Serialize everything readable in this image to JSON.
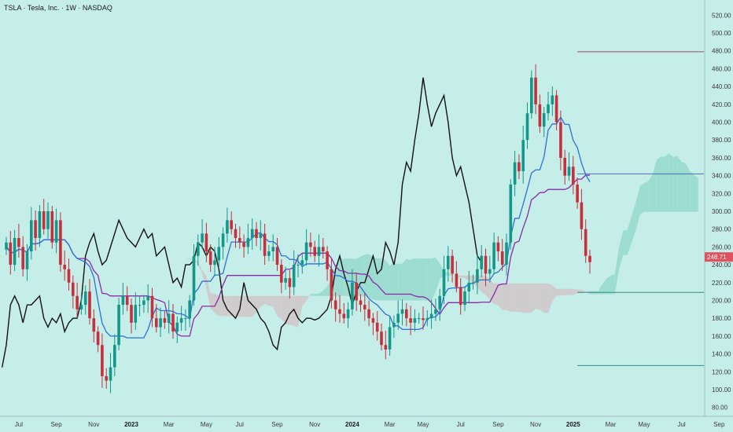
{
  "chart_data": {
    "type": "candlestick",
    "title": "TSLA · Tesla, Inc. · 1W · NASDAQ",
    "symbol": "TSLA",
    "current_price_label": "248.71",
    "y_range": [
      70,
      530
    ],
    "y_ticks": [
      80,
      100,
      120,
      140,
      160,
      180,
      200,
      220,
      240,
      260,
      280,
      300,
      320,
      340,
      360,
      380,
      400,
      420,
      440,
      460,
      480,
      500,
      520
    ],
    "x_ticks": [
      {
        "label": "Jul",
        "bold": false,
        "t": 3
      },
      {
        "label": "Sep",
        "bold": false,
        "t": 12
      },
      {
        "label": "Nov",
        "bold": false,
        "t": 21
      },
      {
        "label": "2023",
        "bold": true,
        "t": 30
      },
      {
        "label": "Mar",
        "bold": false,
        "t": 39
      },
      {
        "label": "May",
        "bold": false,
        "t": 48
      },
      {
        "label": "Jul",
        "bold": false,
        "t": 56
      },
      {
        "label": "Sep",
        "bold": false,
        "t": 65
      },
      {
        "label": "Nov",
        "bold": false,
        "t": 74
      },
      {
        "label": "2024",
        "bold": true,
        "t": 83
      },
      {
        "label": "Mar",
        "bold": false,
        "t": 92
      },
      {
        "label": "May",
        "bold": false,
        "t": 100
      },
      {
        "label": "Jul",
        "bold": false,
        "t": 109
      },
      {
        "label": "Sep",
        "bold": false,
        "t": 118
      },
      {
        "label": "Nov",
        "bold": false,
        "t": 127
      },
      {
        "label": "2025",
        "bold": true,
        "t": 136
      },
      {
        "label": "Mar",
        "bold": false,
        "t": 145
      },
      {
        "label": "May",
        "bold": false,
        "t": 153
      },
      {
        "label": "Jul",
        "bold": false,
        "t": 162
      },
      {
        "label": "Sep",
        "bold": false,
        "t": 171
      }
    ],
    "closes": [
      265,
      240,
      270,
      260,
      235,
      255,
      290,
      270,
      300,
      280,
      300,
      265,
      290,
      240,
      235,
      220,
      205,
      190,
      195,
      210,
      180,
      165,
      150,
      115,
      110,
      125,
      150,
      195,
      205,
      195,
      175,
      195,
      195,
      200,
      205,
      180,
      170,
      180,
      175,
      185,
      165,
      175,
      180,
      180,
      200,
      250,
      265,
      275,
      255,
      240,
      245,
      260,
      275,
      290,
      280,
      270,
      265,
      260,
      270,
      280,
      270,
      275,
      250,
      255,
      260,
      240,
      220,
      225,
      215,
      240,
      240,
      245,
      265,
      260,
      250,
      260,
      255,
      235,
      200,
      190,
      185,
      180,
      190,
      220,
      200,
      195,
      190,
      180,
      175,
      165,
      150,
      145,
      170,
      175,
      185,
      190,
      180,
      175,
      180,
      180,
      178,
      180,
      185,
      190,
      205,
      235,
      250,
      230,
      215,
      195,
      210,
      220,
      220,
      235,
      250,
      230,
      235,
      265,
      255,
      240,
      265,
      330,
      355,
      345,
      380,
      410,
      450,
      420,
      395,
      410,
      420,
      430,
      400,
      360,
      340,
      350,
      330,
      310,
      280,
      250,
      243
    ],
    "annotations": [
      {
        "name": "recent-high-line",
        "price": 479,
        "start_t": 137,
        "color": "#9a4f5b"
      },
      {
        "name": "resistance-line",
        "price": 342,
        "start_t": 137,
        "color": "#4a6fa8"
      },
      {
        "name": "support-line",
        "price": 209,
        "start_t": 137,
        "color": "#3a8a82"
      },
      {
        "name": "low-target-line",
        "price": 127,
        "start_t": 137,
        "color": "#3a8a82"
      }
    ],
    "indicators": [
      "conversion-line",
      "base-line",
      "lagging-span",
      "leading-span-cloud"
    ],
    "colors": {
      "background": "#c6eee9",
      "up": "#12978a",
      "down": "#c62f3b",
      "conversion": "#2f6fd6",
      "base": "#8a2aa8",
      "lagging": "#111111",
      "cloud_bull": "#8fd6c8",
      "cloud_bear": "#cfc3c5",
      "price_tag": "#e0525f"
    }
  }
}
